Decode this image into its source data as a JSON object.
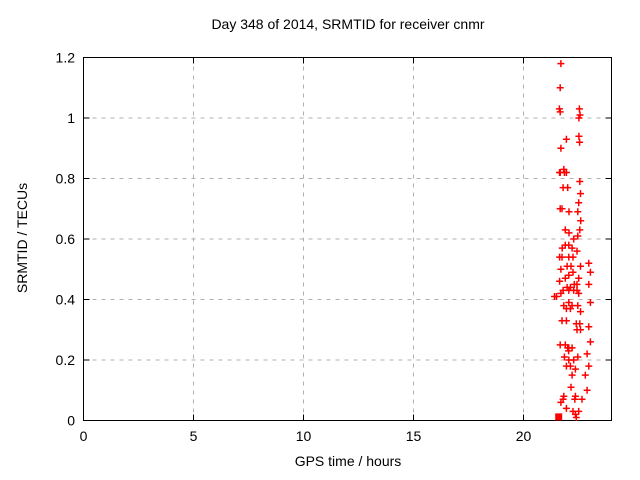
{
  "chart_data": {
    "type": "scatter",
    "title": "Day 348 of 2014, SRMTID for receiver cnmr",
    "xlabel": "GPS time / hours",
    "ylabel": "SRMTID / TECUs",
    "xlim": [
      0,
      24
    ],
    "ylim": [
      0,
      1.2
    ],
    "xticks": [
      {
        "value": 0,
        "label": "0"
      },
      {
        "value": 5,
        "label": "5"
      },
      {
        "value": 10,
        "label": "10"
      },
      {
        "value": 15,
        "label": "15"
      },
      {
        "value": 20,
        "label": "20"
      }
    ],
    "yticks": [
      {
        "value": 0,
        "label": "0"
      },
      {
        "value": 0.2,
        "label": "0.2"
      },
      {
        "value": 0.4,
        "label": "0.4"
      },
      {
        "value": 0.6,
        "label": "0.6"
      },
      {
        "value": 0.8,
        "label": "0.8"
      },
      {
        "value": 1,
        "label": "1"
      },
      {
        "value": 1.2,
        "label": "1.2"
      }
    ],
    "grid": true,
    "grid_style": "dashed",
    "legend": false,
    "marker": "plus",
    "colors": {
      "marker": "#ff0000",
      "axis": "#000000",
      "grid": "#b0b0b0",
      "background": "#ffffff"
    },
    "cluster_marker": {
      "shape": "filled-square",
      "x": 21.6,
      "y": 0.012
    },
    "series": [
      {
        "name": "SRMTID",
        "points": [
          [
            21.7,
            1.18
          ],
          [
            21.67,
            1.1
          ],
          [
            21.63,
            1.03
          ],
          [
            21.67,
            1.02
          ],
          [
            22.54,
            1.03
          ],
          [
            22.57,
            1.01
          ],
          [
            22.52,
            1.0
          ],
          [
            22.52,
            0.94
          ],
          [
            21.95,
            0.93
          ],
          [
            22.55,
            0.92
          ],
          [
            21.7,
            0.9
          ],
          [
            21.83,
            0.83
          ],
          [
            21.95,
            0.82
          ],
          [
            21.67,
            0.82
          ],
          [
            21.64,
            0.82
          ],
          [
            21.86,
            0.82
          ],
          [
            21.8,
            0.77
          ],
          [
            22.01,
            0.77
          ],
          [
            22.56,
            0.79
          ],
          [
            22.59,
            0.75
          ],
          [
            22.51,
            0.72
          ],
          [
            21.67,
            0.7
          ],
          [
            21.75,
            0.7
          ],
          [
            22.07,
            0.69
          ],
          [
            22.47,
            0.69
          ],
          [
            22.6,
            0.66
          ],
          [
            22.56,
            0.63
          ],
          [
            21.9,
            0.63
          ],
          [
            22.07,
            0.62
          ],
          [
            22.47,
            0.61
          ],
          [
            22.28,
            0.6
          ],
          [
            21.9,
            0.58
          ],
          [
            22.06,
            0.58
          ],
          [
            21.76,
            0.57
          ],
          [
            22.21,
            0.57
          ],
          [
            22.43,
            0.56
          ],
          [
            21.64,
            0.54
          ],
          [
            21.75,
            0.54
          ],
          [
            22.06,
            0.54
          ],
          [
            22.25,
            0.54
          ],
          [
            22.97,
            0.52
          ],
          [
            21.98,
            0.51
          ],
          [
            22.16,
            0.51
          ],
          [
            22.59,
            0.51
          ],
          [
            21.7,
            0.5
          ],
          [
            23.04,
            0.49
          ],
          [
            22.25,
            0.49
          ],
          [
            22.06,
            0.48
          ],
          [
            22.51,
            0.47
          ],
          [
            21.64,
            0.46
          ],
          [
            21.9,
            0.47
          ],
          [
            22.31,
            0.45
          ],
          [
            22.97,
            0.45
          ],
          [
            22.43,
            0.45
          ],
          [
            21.98,
            0.44
          ],
          [
            22.13,
            0.44
          ],
          [
            21.8,
            0.43
          ],
          [
            22.51,
            0.42
          ],
          [
            21.7,
            0.42
          ],
          [
            22.06,
            0.43
          ],
          [
            22.28,
            0.43
          ],
          [
            22.43,
            0.43
          ],
          [
            21.41,
            0.41
          ],
          [
            21.5,
            0.41
          ],
          [
            21.83,
            0.38
          ],
          [
            22.06,
            0.39
          ],
          [
            22.21,
            0.38
          ],
          [
            22.47,
            0.38
          ],
          [
            23.04,
            0.39
          ],
          [
            21.95,
            0.37
          ],
          [
            22.13,
            0.37
          ],
          [
            22.59,
            0.36
          ],
          [
            21.75,
            0.33
          ],
          [
            21.95,
            0.33
          ],
          [
            22.4,
            0.32
          ],
          [
            22.56,
            0.32
          ],
          [
            22.97,
            0.31
          ],
          [
            22.43,
            0.3
          ],
          [
            22.59,
            0.3
          ],
          [
            21.67,
            0.25
          ],
          [
            21.9,
            0.25
          ],
          [
            22.06,
            0.24
          ],
          [
            22.01,
            0.24
          ],
          [
            22.05,
            0.23
          ],
          [
            22.21,
            0.24
          ],
          [
            23.04,
            0.26
          ],
          [
            22.89,
            0.22
          ],
          [
            21.86,
            0.21
          ],
          [
            22.06,
            0.2
          ],
          [
            22.28,
            0.2
          ],
          [
            22.47,
            0.21
          ],
          [
            21.95,
            0.18
          ],
          [
            22.13,
            0.18
          ],
          [
            22.36,
            0.17
          ],
          [
            22.97,
            0.18
          ],
          [
            22.21,
            0.15
          ],
          [
            22.81,
            0.15
          ],
          [
            22.16,
            0.11
          ],
          [
            22.89,
            0.1
          ],
          [
            21.83,
            0.08
          ],
          [
            22.36,
            0.08
          ],
          [
            21.8,
            0.07
          ],
          [
            22.33,
            0.07
          ],
          [
            22.66,
            0.07
          ],
          [
            21.7,
            0.06
          ],
          [
            21.95,
            0.04
          ],
          [
            22.25,
            0.03
          ],
          [
            22.51,
            0.03
          ],
          [
            22.36,
            0.02
          ],
          [
            22.4,
            0.01
          ]
        ]
      }
    ]
  }
}
